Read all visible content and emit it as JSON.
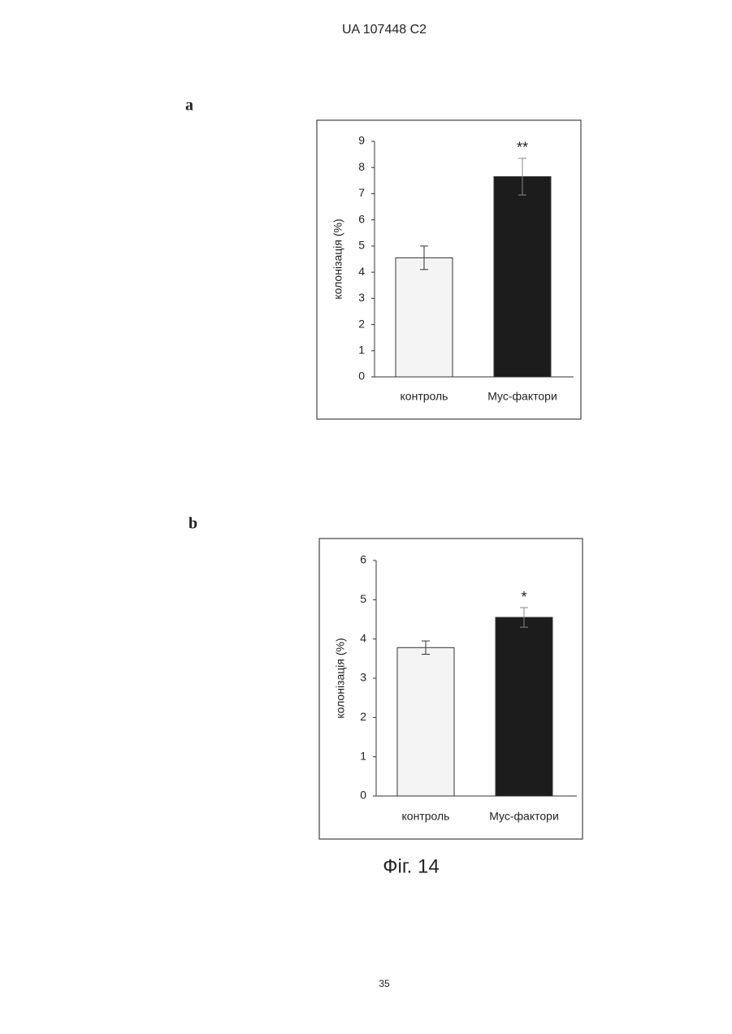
{
  "header": "UA   107448   C2",
  "chart_data": [
    {
      "type": "bar",
      "title": "a",
      "ylabel": "колонізація (%)",
      "categories": [
        "контроль",
        "Мус-фактори"
      ],
      "values": [
        4.55,
        7.65
      ],
      "errors": [
        0.45,
        0.7
      ],
      "annotations": [
        null,
        "**"
      ],
      "colors": [
        "#f4f4f4",
        "#1c1c1c"
      ],
      "ylim": [
        0,
        9
      ],
      "yticks": [
        0,
        1,
        2,
        3,
        4,
        5,
        6,
        7,
        8,
        9
      ]
    },
    {
      "type": "bar",
      "title": "b",
      "ylabel": "колонізація  (%)",
      "categories": [
        "контроль",
        "Мус-фактори"
      ],
      "values": [
        3.78,
        4.55
      ],
      "errors": [
        0.17,
        0.25
      ],
      "annotations": [
        null,
        "*"
      ],
      "colors": [
        "#f4f4f4",
        "#1c1c1c"
      ],
      "ylim": [
        0,
        6
      ],
      "yticks": [
        0,
        1,
        2,
        3,
        4,
        5,
        6
      ]
    }
  ],
  "caption": "Фіг. 14",
  "page_number": "35"
}
